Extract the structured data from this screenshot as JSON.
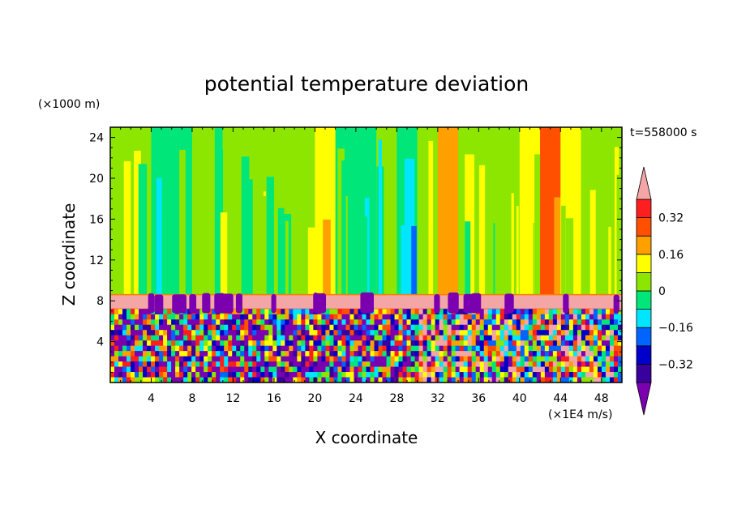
{
  "chart_data": {
    "type": "heatmap",
    "title": "potential temperature deviation",
    "xlabel": "X coordinate",
    "ylabel": "Z coordinate",
    "x_unit": "(×1E4 m/s)",
    "y_unit": "(×1000 m)",
    "time_label": "t=558000 s",
    "xlim": [
      0,
      50
    ],
    "ylim": [
      0,
      25
    ],
    "x_ticks": [
      "4",
      "8",
      "12",
      "16",
      "20",
      "24",
      "28",
      "32",
      "36",
      "40",
      "44",
      "48"
    ],
    "y_ticks": [
      "4",
      "8",
      "12",
      "16",
      "20",
      "24"
    ],
    "colorbar": {
      "levels": [
        -0.48,
        -0.4,
        -0.32,
        -0.24,
        -0.16,
        -0.08,
        0,
        0.08,
        0.16,
        0.24,
        0.32,
        0.4,
        0.48
      ],
      "tick_labels": [
        "0.32",
        "0.16",
        "0",
        "−0.16",
        "−0.32"
      ],
      "tick_values": [
        0.32,
        0.16,
        0,
        -0.16,
        -0.32
      ],
      "colors": [
        "#7a00b0",
        "#38009c",
        "#0000c8",
        "#0064ff",
        "#00e6ff",
        "#00e678",
        "#8ce600",
        "#ffff00",
        "#ffa000",
        "#ff5000",
        "#ff1e1e",
        "#f4a6a6"
      ],
      "extend": "both"
    },
    "upper_layer": {
      "z_range": [
        8.6,
        25
      ],
      "x_centers": [
        1,
        3,
        5,
        7,
        9,
        11,
        13,
        15,
        17,
        19,
        21,
        23,
        25,
        27,
        29,
        31,
        33,
        35,
        37,
        39,
        41,
        43,
        45,
        47,
        49
      ],
      "values": [
        0.04,
        0.06,
        -0.06,
        -0.04,
        0.02,
        0.04,
        0.0,
        0.02,
        0.06,
        0.04,
        0.14,
        -0.02,
        -0.06,
        0.0,
        -0.08,
        0.06,
        0.18,
        0.06,
        0.02,
        0.06,
        0.12,
        0.26,
        0.14,
        0.06,
        0.04
      ]
    },
    "inversion_layer": {
      "z_range": [
        7.2,
        8.6
      ],
      "value": 0.42
    },
    "lower_layer": {
      "z_range": [
        0,
        7.2
      ],
      "description_values": "turbulent, full range -0.48 to 0.48"
    }
  }
}
